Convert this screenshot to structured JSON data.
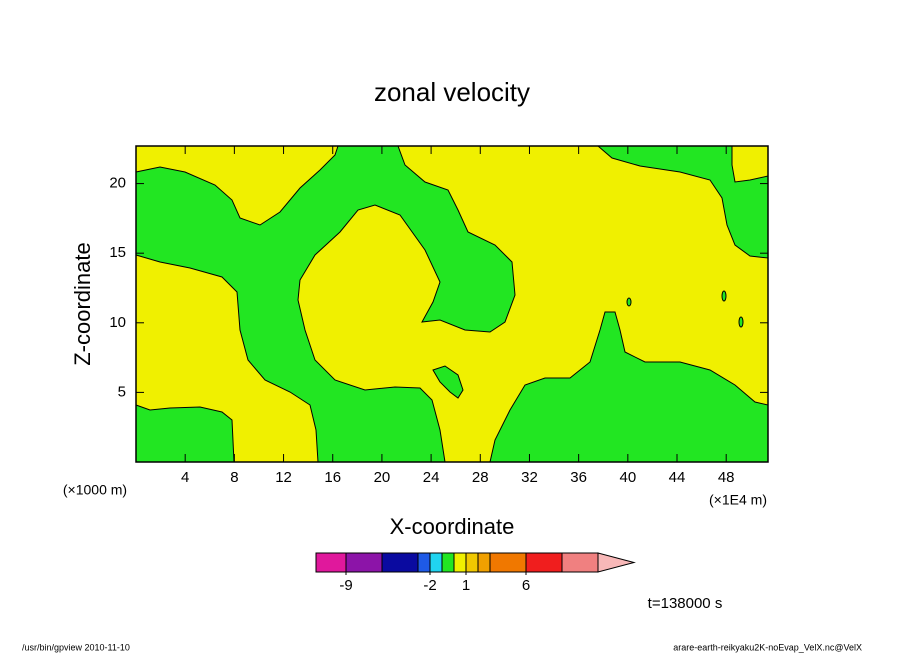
{
  "chart_data": {
    "type": "contour",
    "title": "zonal velocity",
    "xlabel": "X-coordinate",
    "ylabel": "Z-coordinate",
    "x_unit_label": "(×1E4 m)",
    "y_unit_label": "(×1000 m)",
    "annotation": "t=138000 s",
    "xlim": [
      0,
      51.4
    ],
    "ylim": [
      0,
      22.7
    ],
    "xticks": [
      4,
      8,
      12,
      16,
      20,
      24,
      28,
      32,
      36,
      40,
      44,
      48
    ],
    "yticks": [
      5,
      10,
      15,
      20
    ],
    "colorbar": {
      "levels": [
        -9,
        -6,
        -3,
        -2,
        -1,
        0,
        1,
        2,
        3,
        6,
        9,
        12
      ],
      "colors": [
        "#e0189c",
        "#8c14a8",
        "#0a0aa0",
        "#1e5ae6",
        "#20d4f0",
        "#22e622",
        "#f0f000",
        "#f0c800",
        "#f0a000",
        "#f07800",
        "#f01e1e",
        "#f08080",
        "#f8b8b8"
      ],
      "ticks": [
        -9,
        -2,
        1,
        6
      ]
    }
  },
  "footer": {
    "left": "/usr/bin/gpview  2010-11-10",
    "right": "arare-earth-reikyaku2K-noEvap_VelX.nc@VelX"
  }
}
